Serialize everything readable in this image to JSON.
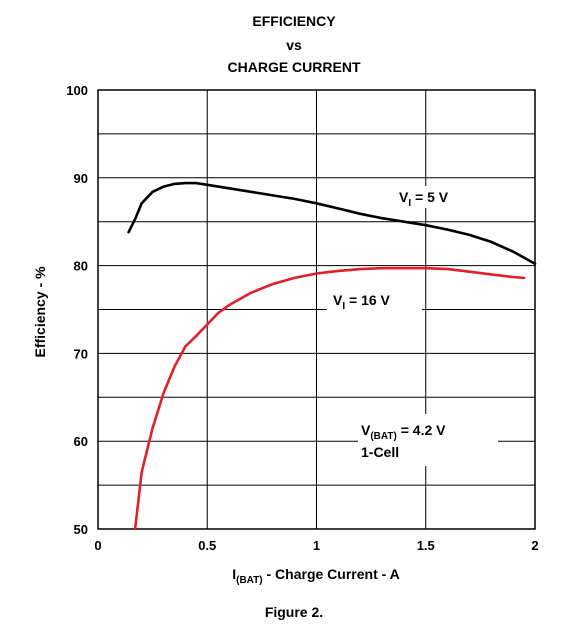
{
  "chart_data": {
    "type": "line",
    "title": [
      "EFFICIENCY",
      "vs",
      "CHARGE CURRENT"
    ],
    "caption": "Figure 2.",
    "xlabel": {
      "main": "I",
      "sub": "(BAT)",
      "rest": " - Charge Current - A"
    },
    "ylabel": "Efficiency - %",
    "xlim": [
      0,
      2
    ],
    "ylim": [
      50,
      100
    ],
    "x_ticks": [
      "0",
      "0.5",
      "1",
      "1.5",
      "2"
    ],
    "y_ticks": [
      "50",
      "60",
      "70",
      "80",
      "90",
      "100"
    ],
    "grid": true,
    "series": [
      {
        "name": {
          "main": "V",
          "sub": "I",
          "rest": " = 5 V"
        },
        "color": "#000000",
        "x": [
          0.14,
          0.17,
          0.2,
          0.25,
          0.3,
          0.35,
          0.4,
          0.45,
          0.5,
          0.6,
          0.7,
          0.8,
          0.9,
          1.0,
          1.1,
          1.2,
          1.3,
          1.4,
          1.5,
          1.6,
          1.7,
          1.8,
          1.9,
          2.0
        ],
        "y": [
          83.8,
          85.3,
          87.1,
          88.4,
          89.0,
          89.3,
          89.4,
          89.4,
          89.2,
          88.8,
          88.4,
          88.0,
          87.6,
          87.1,
          86.5,
          85.9,
          85.4,
          85.0,
          84.6,
          84.1,
          83.5,
          82.7,
          81.6,
          80.2
        ]
      },
      {
        "name": {
          "main": "V",
          "sub": "I",
          "rest": " = 16 V"
        },
        "color": "#e0202a",
        "x": [
          0.17,
          0.2,
          0.25,
          0.3,
          0.35,
          0.4,
          0.45,
          0.5,
          0.55,
          0.6,
          0.7,
          0.8,
          0.9,
          1.0,
          1.1,
          1.2,
          1.3,
          1.4,
          1.5,
          1.6,
          1.7,
          1.8,
          1.9,
          1.95
        ],
        "y": [
          50.0,
          56.5,
          61.5,
          65.5,
          68.5,
          70.8,
          72.0,
          73.3,
          74.6,
          75.5,
          76.9,
          77.9,
          78.6,
          79.1,
          79.4,
          79.6,
          79.7,
          79.7,
          79.7,
          79.6,
          79.3,
          79.0,
          78.7,
          78.6
        ]
      }
    ],
    "annotation": {
      "main": "V",
      "sub": "(BAT)",
      "rest": " = 4.2 V",
      "line2": "1-Cell"
    }
  }
}
